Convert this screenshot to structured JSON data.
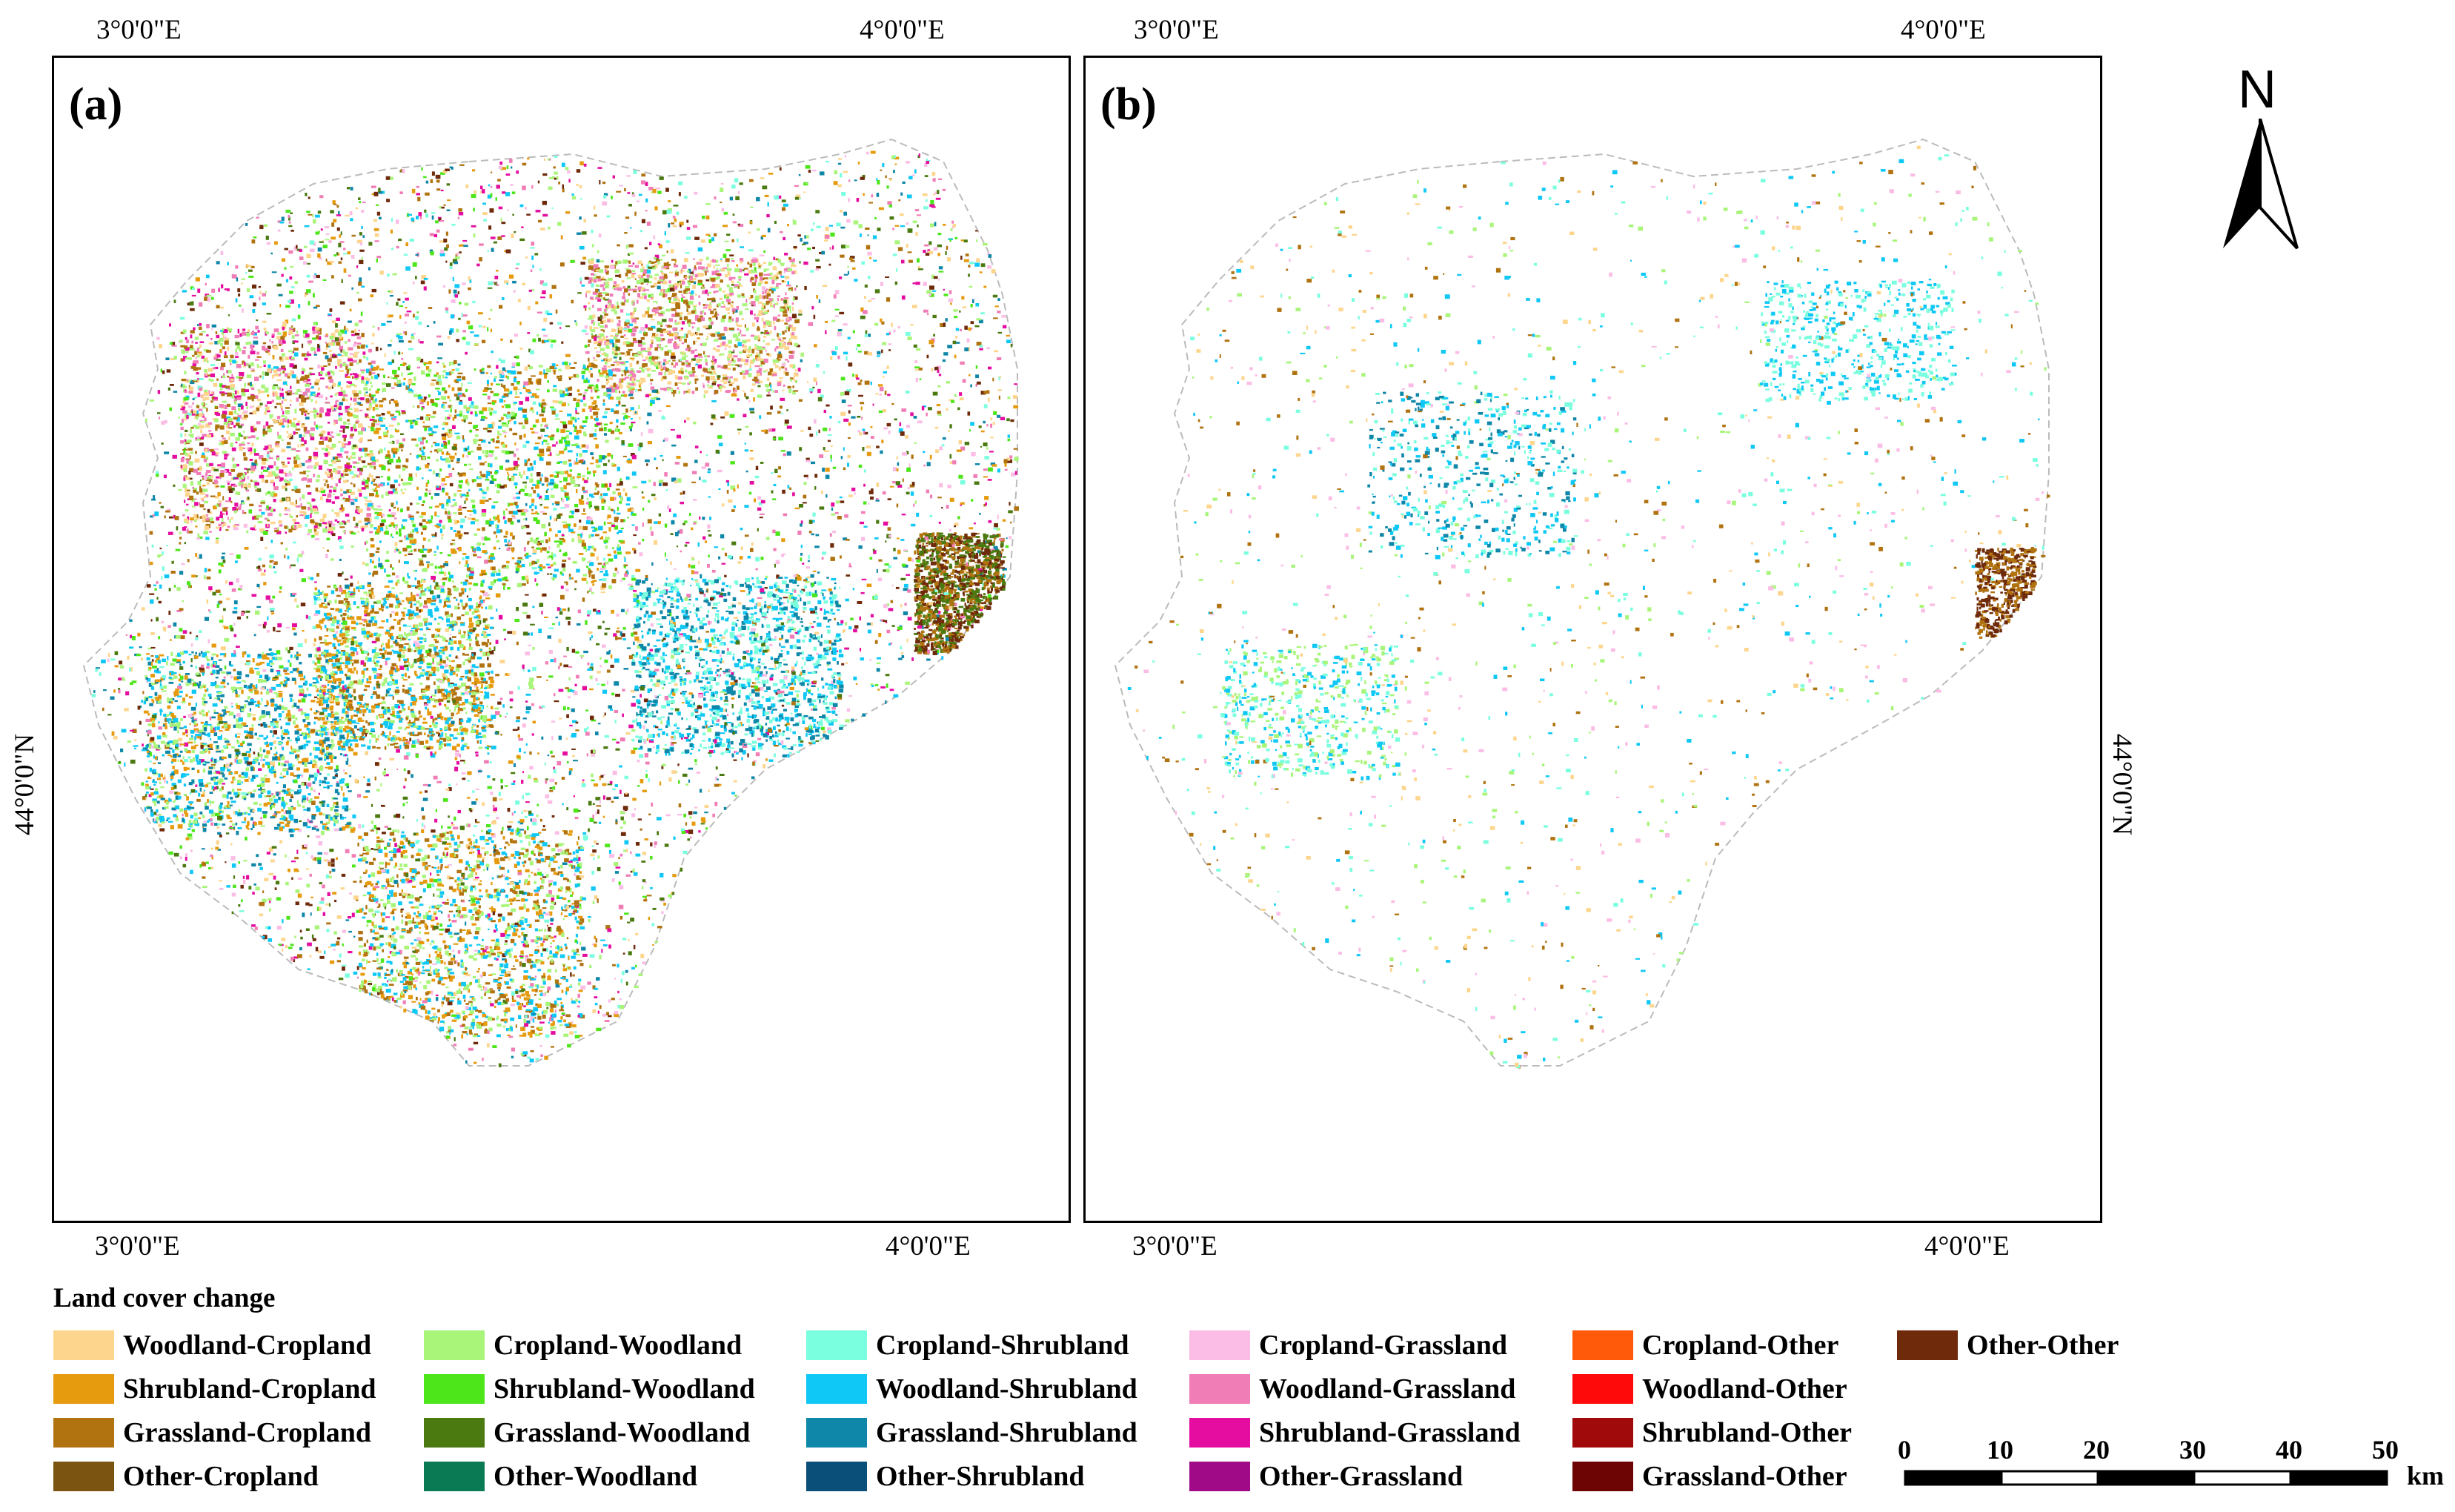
{
  "panels": [
    {
      "label": "(a)"
    },
    {
      "label": "(b)"
    }
  ],
  "coords": {
    "lon_3": "3°0'0\"E",
    "lon_4": "4°0'0\"E",
    "lat_44": "44°0'0\"N"
  },
  "north_arrow": {
    "label": "N"
  },
  "legend": {
    "title": "Land cover change",
    "items": [
      {
        "label": "Woodland-Cropland",
        "color": "#FDD58C"
      },
      {
        "label": "Shrubland-Cropland",
        "color": "#E69B0E"
      },
      {
        "label": "Grassland-Cropland",
        "color": "#B07310"
      },
      {
        "label": "Other-Cropland",
        "color": "#7A5410"
      },
      {
        "label": "Cropland-Woodland",
        "color": "#A8F57A"
      },
      {
        "label": "Shrubland-Woodland",
        "color": "#4CE61A"
      },
      {
        "label": "Grassland-Woodland",
        "color": "#4A7A10"
      },
      {
        "label": "Other-Woodland",
        "color": "#0A7A55"
      },
      {
        "label": "Cropland-Shrubland",
        "color": "#7AFFDF"
      },
      {
        "label": "Woodland-Shrubland",
        "color": "#0FC8F5"
      },
      {
        "label": "Grassland-Shrubland",
        "color": "#0E87A8"
      },
      {
        "label": "Other-Shrubland",
        "color": "#0A4F7A"
      },
      {
        "label": "Cropland-Grassland",
        "color": "#FBBDE6"
      },
      {
        "label": "Woodland-Grassland",
        "color": "#F17DB7"
      },
      {
        "label": "Shrubland-Grassland",
        "color": "#E40DA0"
      },
      {
        "label": "Other-Grassland",
        "color": "#A00A87"
      },
      {
        "label": "Cropland-Other",
        "color": "#FF5A0A"
      },
      {
        "label": "Woodland-Other",
        "color": "#FF0A0A"
      },
      {
        "label": "Shrubland-Other",
        "color": "#A00A0A"
      },
      {
        "label": "Grassland-Other",
        "color": "#6E0505"
      },
      {
        "label": "Other-Other",
        "color": "#6E2A0A"
      }
    ]
  },
  "scalebar": {
    "ticks": [
      "0",
      "10",
      "20",
      "30",
      "40",
      "50"
    ],
    "unit": "km"
  }
}
